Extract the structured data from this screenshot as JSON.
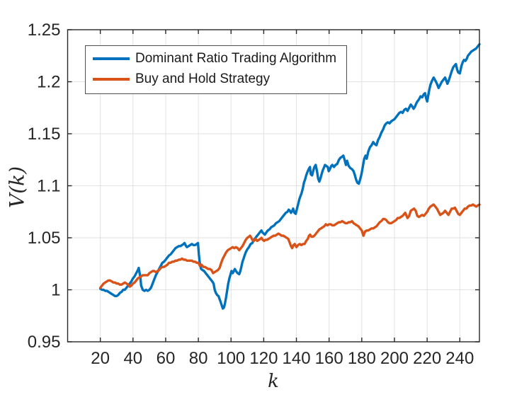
{
  "chart_data": {
    "type": "line",
    "title": "",
    "xlabel": "k",
    "ylabel": "V(k)",
    "xlim": [
      0,
      252
    ],
    "ylim": [
      0.95,
      1.25
    ],
    "grid": true,
    "axis_color": "#262626",
    "grid_color": "#e2e2e2",
    "background": "#ffffff",
    "x_ticks": [
      20,
      40,
      60,
      80,
      100,
      120,
      140,
      160,
      180,
      200,
      220,
      240
    ],
    "x_tick_labels": [
      "20",
      "40",
      "60",
      "80",
      "100",
      "120",
      "140",
      "160",
      "180",
      "200",
      "220",
      "240"
    ],
    "y_ticks": [
      0.95,
      1.0,
      1.05,
      1.1,
      1.15,
      1.2,
      1.25
    ],
    "y_tick_labels": [
      "0.95",
      "1",
      "1.05",
      "1.1",
      "1.15",
      "1.2",
      "1.25"
    ],
    "legend": {
      "location": "upper-left-inside"
    },
    "series": [
      {
        "name": "Dominant Ratio Trading Algorithm",
        "color": "#0072BD",
        "x": [
          20,
          21,
          22,
          23,
          24,
          25,
          26,
          27,
          28,
          29,
          30,
          31,
          32,
          33,
          34,
          35,
          36,
          37,
          38,
          39,
          40,
          41,
          42,
          43,
          43.5,
          44.5,
          45,
          46,
          47,
          48,
          49,
          50,
          51,
          52,
          53,
          54,
          55,
          56,
          57,
          58,
          59,
          60,
          61,
          62,
          63,
          64,
          65,
          66,
          67,
          68,
          69,
          70,
          71,
          71.5,
          72.5,
          73,
          74,
          75,
          76,
          77,
          78,
          79,
          79.8,
          80.3,
          81,
          81.7,
          82.5,
          83.5,
          84.5,
          85.5,
          86.5,
          87.5,
          88.5,
          89.3,
          90,
          90.7,
          91.5,
          92.3,
          93,
          93.7,
          94.3,
          95,
          95.7,
          96.3,
          97,
          97.7,
          98.3,
          99,
          99.7,
          100.3,
          101,
          101.7,
          102.3,
          103,
          104,
          105,
          105.7,
          106.3,
          107,
          107.7,
          108.3,
          109,
          110,
          111,
          112,
          113,
          114,
          115,
          116,
          117,
          118,
          118.6,
          119.3,
          120,
          120.7,
          121.5,
          122.5,
          123.5,
          124.5,
          125.5,
          126.5,
          127.5,
          128.5,
          129.5,
          130.5,
          131.5,
          132.5,
          133.5,
          134.5,
          135.3,
          136,
          136.7,
          137.5,
          138,
          138.8,
          139.6,
          140.2,
          141,
          141.8,
          142.5,
          143.2,
          144,
          144.6,
          145.3,
          146,
          146.7,
          147.5,
          148.3,
          148.8,
          149.6,
          150.4,
          151,
          151.8,
          152.7,
          153.3,
          154,
          154.7,
          155.4,
          156.2,
          157,
          157.5,
          158.3,
          159.2,
          159.8,
          160.5,
          161.3,
          162,
          163,
          164,
          165,
          166,
          167,
          168,
          168.7,
          169.5,
          170.3,
          171,
          172,
          173,
          174,
          175,
          175.8,
          176.5,
          177.3,
          178.2,
          179,
          179.8,
          180.7,
          181.5,
          182.3,
          183,
          184,
          185,
          186,
          187,
          188,
          189,
          190,
          191,
          192,
          193,
          194,
          195,
          196,
          197,
          198,
          199,
          200,
          201,
          202,
          203,
          204,
          205,
          206,
          207,
          208,
          209,
          210,
          211,
          211.7,
          212.5,
          213.3,
          214,
          215,
          216,
          217,
          218,
          218.7,
          219.4,
          220,
          220.7,
          221.4,
          222,
          223,
          224,
          224.7,
          225.4,
          226,
          227,
          228,
          229,
          230,
          231,
          231.7,
          232.4,
          233.2,
          234,
          235,
          236,
          237,
          237.6,
          238.3,
          239,
          240,
          241,
          241.8,
          242.6,
          243.4,
          244.2,
          245,
          246,
          247,
          248,
          249,
          250,
          251,
          252
        ],
        "y": [
          1.001,
          1.0,
          1.0,
          0.999,
          0.999,
          0.998,
          0.997,
          0.996,
          0.995,
          0.994,
          0.994,
          0.995,
          0.997,
          0.998,
          1.0,
          1.0,
          1.002,
          1.004,
          1.006,
          1.008,
          1.011,
          1.013,
          1.016,
          1.019,
          1.021,
          1.012,
          1.004,
          1.0,
          0.999,
          1.0,
          0.999,
          1.0,
          1.002,
          1.006,
          1.01,
          1.014,
          1.017,
          1.02,
          1.023,
          1.026,
          1.027,
          1.029,
          1.031,
          1.033,
          1.034,
          1.036,
          1.038,
          1.04,
          1.041,
          1.042,
          1.042,
          1.043,
          1.044,
          1.045,
          1.042,
          1.041,
          1.042,
          1.043,
          1.044,
          1.043,
          1.043,
          1.044,
          1.045,
          1.034,
          1.024,
          1.02,
          1.019,
          1.018,
          1.016,
          1.014,
          1.012,
          1.01,
          1.008,
          1.006,
          1.0,
          0.997,
          0.995,
          0.994,
          0.991,
          0.988,
          0.985,
          0.982,
          0.983,
          0.987,
          0.993,
          1.0,
          1.006,
          1.011,
          1.015,
          1.018,
          1.016,
          1.018,
          1.02,
          1.018,
          1.016,
          1.015,
          1.018,
          1.022,
          1.027,
          1.03,
          1.033,
          1.036,
          1.039,
          1.041,
          1.044,
          1.045,
          1.048,
          1.05,
          1.052,
          1.054,
          1.056,
          1.057,
          1.055,
          1.054,
          1.053,
          1.055,
          1.057,
          1.058,
          1.06,
          1.061,
          1.062,
          1.064,
          1.065,
          1.066,
          1.068,
          1.07,
          1.072,
          1.074,
          1.075,
          1.077,
          1.076,
          1.074,
          1.076,
          1.078,
          1.074,
          1.073,
          1.077,
          1.082,
          1.087,
          1.09,
          1.093,
          1.098,
          1.103,
          1.106,
          1.11,
          1.113,
          1.116,
          1.118,
          1.111,
          1.11,
          1.115,
          1.118,
          1.12,
          1.113,
          1.107,
          1.104,
          1.107,
          1.111,
          1.115,
          1.118,
          1.12,
          1.119,
          1.118,
          1.114,
          1.116,
          1.119,
          1.12,
          1.118,
          1.12,
          1.121,
          1.125,
          1.127,
          1.128,
          1.129,
          1.125,
          1.12,
          1.124,
          1.119,
          1.117,
          1.116,
          1.114,
          1.11,
          1.106,
          1.103,
          1.102,
          1.106,
          1.111,
          1.119,
          1.126,
          1.129,
          1.126,
          1.133,
          1.137,
          1.139,
          1.142,
          1.14,
          1.139,
          1.144,
          1.147,
          1.151,
          1.154,
          1.158,
          1.16,
          1.161,
          1.16,
          1.162,
          1.163,
          1.164,
          1.166,
          1.168,
          1.17,
          1.171,
          1.17,
          1.173,
          1.174,
          1.172,
          1.175,
          1.178,
          1.176,
          1.174,
          1.176,
          1.179,
          1.181,
          1.183,
          1.186,
          1.185,
          1.188,
          1.189,
          1.184,
          1.181,
          1.187,
          1.193,
          1.197,
          1.201,
          1.204,
          1.202,
          1.2,
          1.198,
          1.194,
          1.197,
          1.2,
          1.202,
          1.204,
          1.201,
          1.198,
          1.201,
          1.205,
          1.21,
          1.214,
          1.216,
          1.217,
          1.212,
          1.209,
          1.208,
          1.215,
          1.219,
          1.221,
          1.22,
          1.222,
          1.225,
          1.227,
          1.229,
          1.23,
          1.231,
          1.232,
          1.234,
          1.236
        ]
      },
      {
        "name": "Buy and Hold Strategy",
        "color": "#D95319",
        "x": [
          20,
          21,
          22,
          23,
          24,
          25,
          26,
          27,
          28,
          29,
          30,
          31,
          32,
          33,
          34,
          35,
          36,
          37,
          38,
          39,
          40,
          41,
          42,
          43,
          44,
          45,
          46,
          47,
          48,
          49,
          50,
          51,
          52,
          53,
          54,
          55,
          56,
          57,
          58,
          59,
          60,
          61,
          62,
          63,
          64,
          65,
          66,
          67,
          68,
          69,
          70,
          71,
          72,
          73,
          74,
          75,
          76,
          77,
          78,
          79,
          80,
          81,
          82,
          83,
          84,
          85,
          86,
          87,
          88,
          89,
          90,
          91,
          92,
          93,
          94,
          95,
          96,
          97,
          98,
          99,
          100,
          101,
          102,
          103,
          104,
          105,
          106,
          107,
          108,
          109,
          110,
          111,
          111.6,
          112.4,
          113,
          114,
          115,
          116,
          117,
          118,
          118.6,
          119.4,
          120.2,
          121,
          122,
          123,
          124,
          125,
          126,
          127,
          128,
          129,
          130,
          131,
          132,
          133,
          134,
          135,
          136,
          136.7,
          137.4,
          138.2,
          139,
          140,
          141,
          142,
          143,
          144,
          145,
          146,
          147,
          147.7,
          148.4,
          149.2,
          150,
          151,
          152,
          153,
          154,
          155,
          156,
          157,
          158,
          159,
          160,
          161,
          162,
          163,
          164,
          165,
          166,
          167,
          168,
          169,
          170,
          171,
          172,
          173,
          174,
          175,
          176,
          177,
          178,
          179,
          180,
          181,
          182,
          183,
          184,
          185,
          186,
          187,
          188,
          189,
          190,
          191,
          192,
          193,
          194,
          195,
          196,
          197,
          198,
          199,
          200,
          201,
          202,
          203,
          204,
          205,
          206,
          206.6,
          207.4,
          208,
          209,
          210,
          211,
          212,
          213,
          214,
          215,
          216,
          217,
          218,
          219,
          220,
          221,
          222,
          223,
          224,
          225,
          226,
          227,
          228,
          229,
          230,
          231,
          232,
          233,
          234,
          235,
          236,
          237,
          238,
          239,
          240,
          241,
          242,
          243,
          244,
          245,
          246,
          247,
          248,
          249,
          250,
          251,
          252
        ],
        "y": [
          1.002,
          1.004,
          1.006,
          1.007,
          1.008,
          1.009,
          1.009,
          1.008,
          1.007,
          1.007,
          1.006,
          1.006,
          1.005,
          1.005,
          1.006,
          1.007,
          1.006,
          1.005,
          1.003,
          1.004,
          1.006,
          1.007,
          1.009,
          1.011,
          1.012,
          1.013,
          1.014,
          1.014,
          1.014,
          1.014,
          1.016,
          1.017,
          1.018,
          1.018,
          1.017,
          1.018,
          1.019,
          1.021,
          1.022,
          1.022,
          1.023,
          1.024,
          1.026,
          1.026,
          1.027,
          1.027,
          1.028,
          1.028,
          1.029,
          1.029,
          1.03,
          1.029,
          1.029,
          1.028,
          1.028,
          1.028,
          1.028,
          1.027,
          1.027,
          1.026,
          1.026,
          1.023,
          1.024,
          1.022,
          1.022,
          1.021,
          1.02,
          1.02,
          1.019,
          1.016,
          1.017,
          1.018,
          1.019,
          1.021,
          1.026,
          1.03,
          1.033,
          1.036,
          1.038,
          1.039,
          1.04,
          1.041,
          1.04,
          1.041,
          1.04,
          1.038,
          1.04,
          1.042,
          1.045,
          1.048,
          1.05,
          1.051,
          1.052,
          1.05,
          1.048,
          1.047,
          1.049,
          1.047,
          1.048,
          1.049,
          1.05,
          1.048,
          1.047,
          1.048,
          1.048,
          1.049,
          1.05,
          1.051,
          1.052,
          1.052,
          1.053,
          1.054,
          1.053,
          1.052,
          1.052,
          1.051,
          1.05,
          1.049,
          1.045,
          1.042,
          1.04,
          1.043,
          1.044,
          1.041,
          1.043,
          1.044,
          1.043,
          1.044,
          1.044,
          1.047,
          1.049,
          1.052,
          1.053,
          1.051,
          1.051,
          1.052,
          1.054,
          1.056,
          1.058,
          1.059,
          1.06,
          1.061,
          1.063,
          1.062,
          1.063,
          1.063,
          1.062,
          1.062,
          1.063,
          1.064,
          1.065,
          1.065,
          1.066,
          1.065,
          1.064,
          1.064,
          1.065,
          1.065,
          1.066,
          1.064,
          1.063,
          1.062,
          1.061,
          1.059,
          1.057,
          1.052,
          1.056,
          1.057,
          1.057,
          1.058,
          1.059,
          1.059,
          1.06,
          1.061,
          1.063,
          1.065,
          1.066,
          1.068,
          1.068,
          1.067,
          1.065,
          1.064,
          1.064,
          1.065,
          1.066,
          1.067,
          1.069,
          1.069,
          1.07,
          1.071,
          1.073,
          1.074,
          1.071,
          1.069,
          1.071,
          1.076,
          1.077,
          1.078,
          1.076,
          1.071,
          1.07,
          1.071,
          1.072,
          1.071,
          1.073,
          1.075,
          1.078,
          1.08,
          1.081,
          1.082,
          1.08,
          1.078,
          1.075,
          1.072,
          1.073,
          1.074,
          1.076,
          1.074,
          1.072,
          1.075,
          1.078,
          1.078,
          1.079,
          1.076,
          1.073,
          1.072,
          1.074,
          1.076,
          1.078,
          1.078,
          1.08,
          1.081,
          1.081,
          1.082,
          1.081,
          1.08,
          1.081,
          1.082
        ]
      }
    ]
  }
}
